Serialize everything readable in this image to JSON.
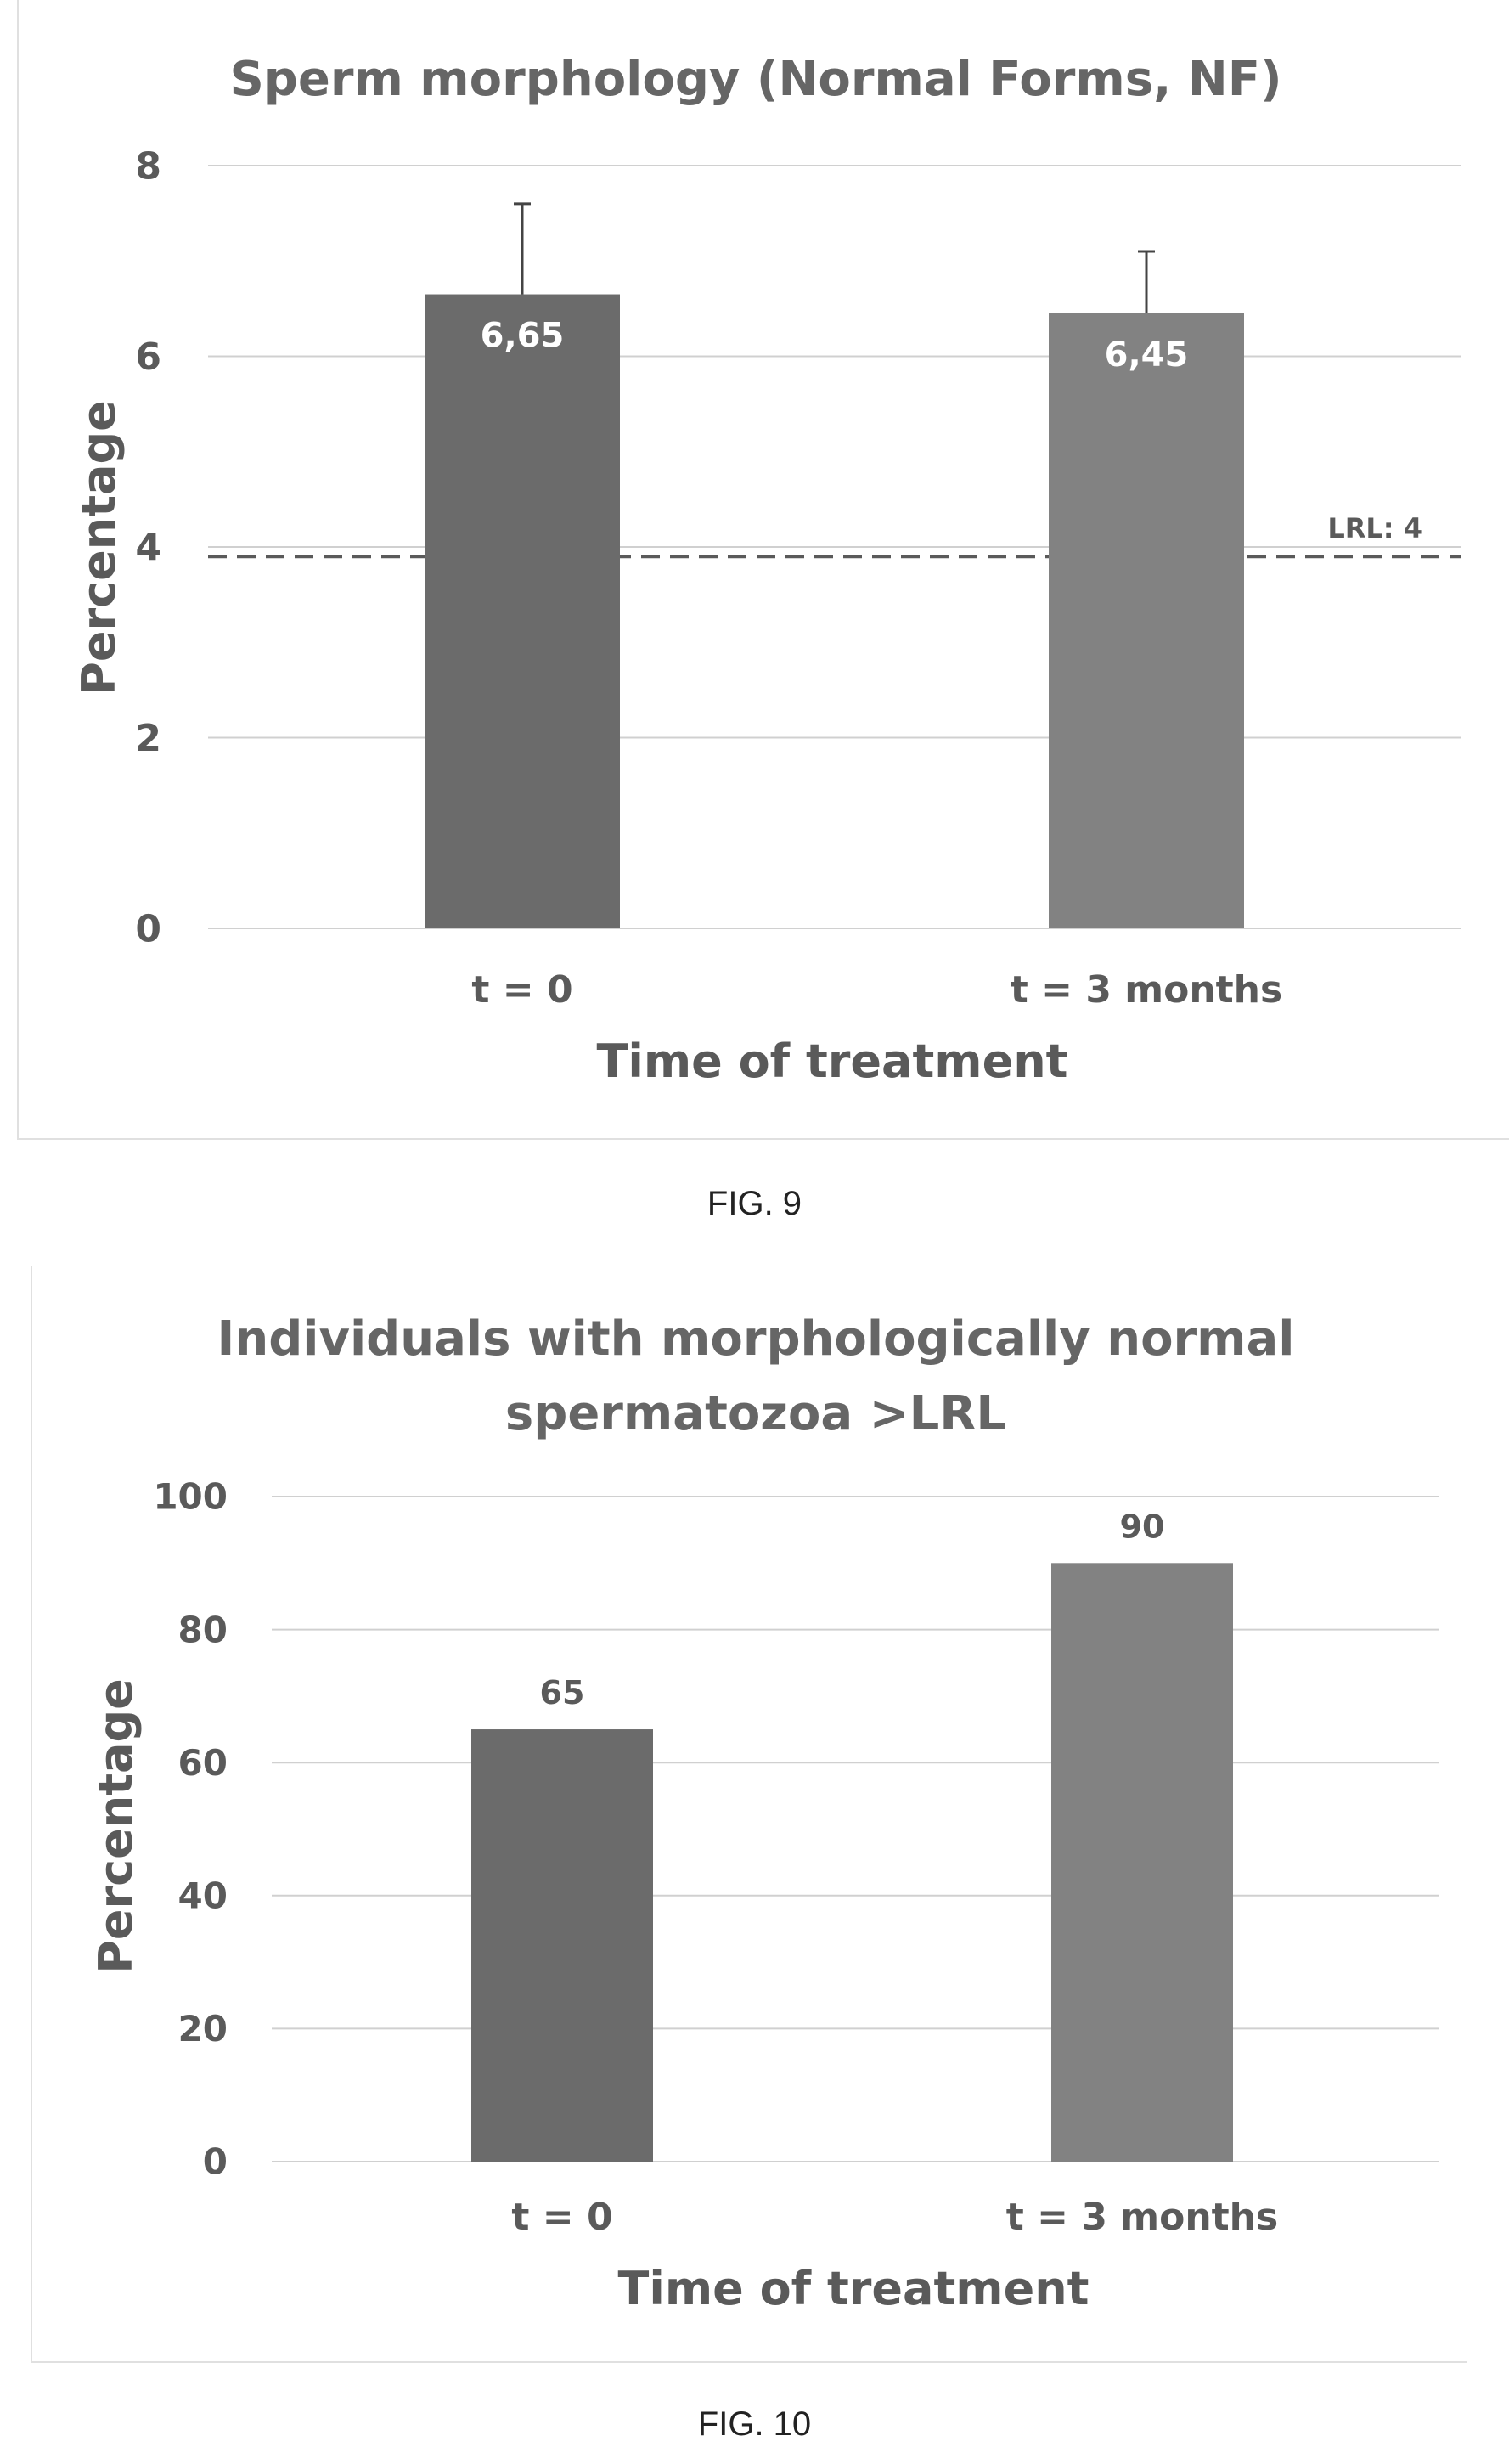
{
  "figures": [
    {
      "caption": "FIG. 9"
    },
    {
      "caption": "FIG. 10"
    }
  ],
  "colors": {
    "bar_dark": "#6b6b6b",
    "bar_light": "#828282",
    "grid": "#d0d0d0",
    "axis_text": "#5a5a5a",
    "title_text": "#666666",
    "ref_line": "#5a5a5a"
  },
  "chart_data": [
    {
      "type": "bar",
      "title": "Sperm morphology (Normal Forms, NF)",
      "xlabel": "Time of treatment",
      "ylabel": "Percentage",
      "categories": [
        "t = 0",
        "t = 3 months"
      ],
      "values": [
        6.65,
        6.45
      ],
      "value_labels": [
        "6,65",
        "6,45"
      ],
      "error_upper": [
        0.95,
        0.65
      ],
      "ylim": [
        0,
        8
      ],
      "yticks": [
        0,
        2,
        4,
        6,
        8
      ],
      "ytick_labels": [
        "0",
        "2",
        "4",
        "6",
        "8"
      ],
      "grid": true,
      "reference_line": {
        "value": 3.9,
        "label": "LRL: 4",
        "style": "dashed"
      }
    },
    {
      "type": "bar",
      "title": "Individuals with morphologically normal spermatozoa >LRL",
      "title_lines": [
        "Individuals with morphologically normal",
        "spermatozoa >LRL"
      ],
      "xlabel": "Time of treatment",
      "ylabel": "Percentage",
      "categories": [
        "t = 0",
        "t = 3 months"
      ],
      "values": [
        65,
        90
      ],
      "value_labels": [
        "65",
        "90"
      ],
      "ylim": [
        0,
        100
      ],
      "yticks": [
        0,
        20,
        40,
        60,
        80,
        100
      ],
      "ytick_labels": [
        "0",
        "20",
        "40",
        "60",
        "80",
        "100"
      ],
      "grid": true
    }
  ]
}
